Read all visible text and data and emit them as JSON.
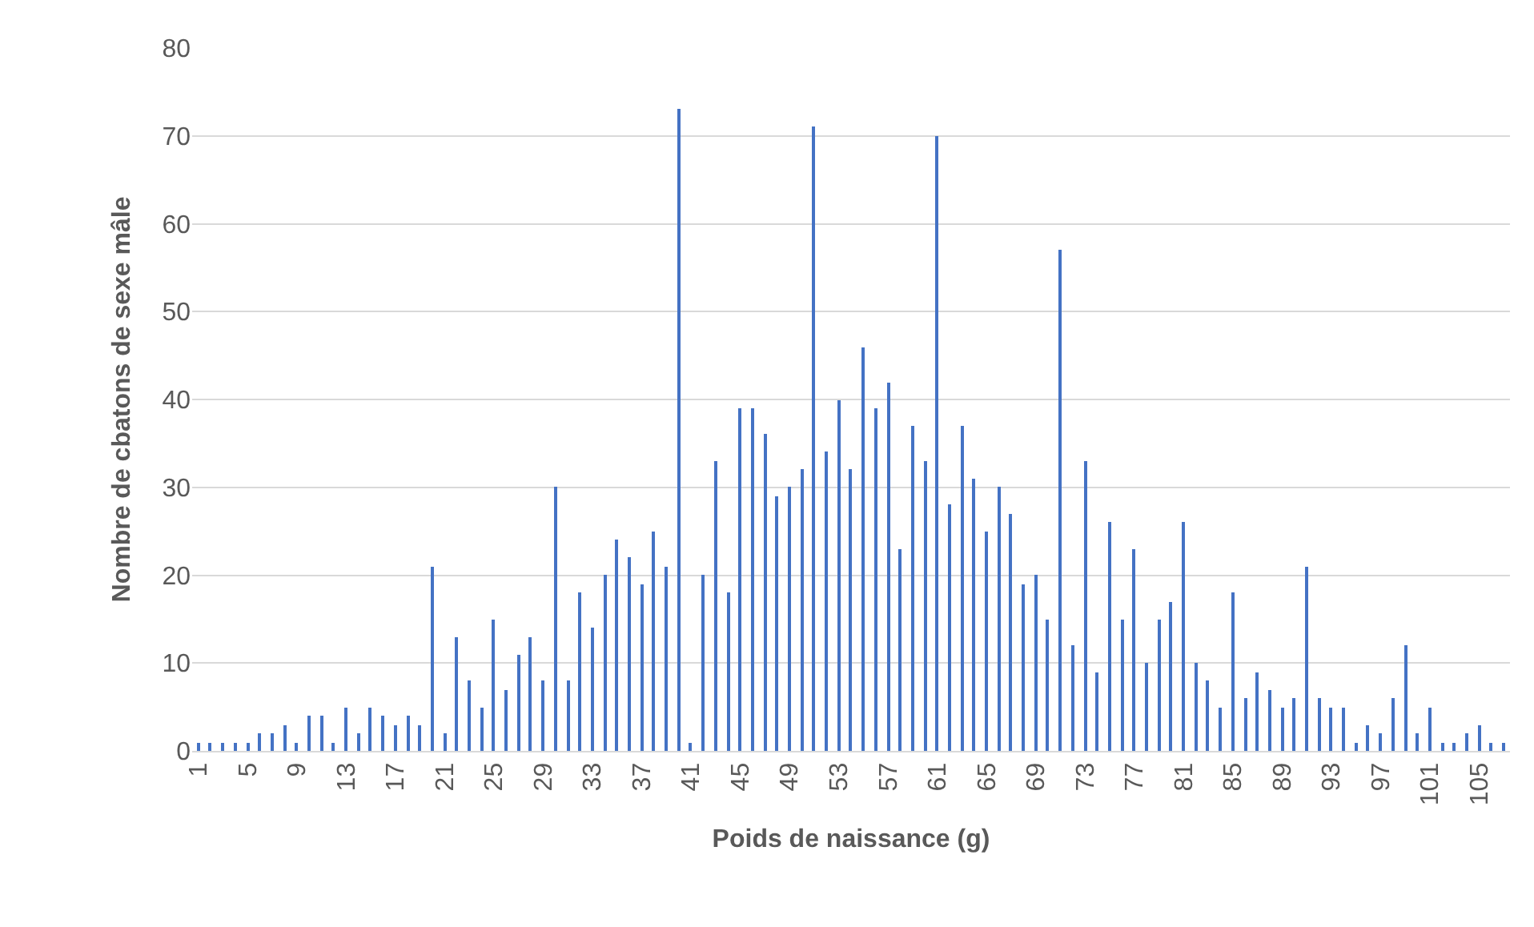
{
  "chart_data": {
    "type": "bar",
    "xlabel": "Poids de naissance (g)",
    "ylabel": "Nombre de cbatons de sexe mâle",
    "categories": [
      "1",
      null,
      null,
      null,
      "5",
      null,
      null,
      null,
      "9",
      null,
      null,
      null,
      "13",
      null,
      null,
      null,
      "17",
      null,
      null,
      null,
      "21",
      null,
      null,
      null,
      "25",
      null,
      null,
      null,
      "29",
      null,
      null,
      null,
      "33",
      null,
      null,
      null,
      "37",
      null,
      null,
      null,
      "41",
      null,
      null,
      null,
      "45",
      null,
      null,
      null,
      "49",
      null,
      null,
      null,
      "53",
      null,
      null,
      null,
      "57",
      null,
      null,
      null,
      "61",
      null,
      null,
      null,
      "65",
      null,
      null,
      null,
      "69",
      null,
      null,
      null,
      "73",
      null,
      null,
      null,
      "77",
      null,
      null,
      null,
      "81",
      null,
      null,
      null,
      "85",
      null,
      null,
      null,
      "89",
      null,
      null,
      null,
      "93",
      null,
      null,
      null,
      "97",
      null,
      null,
      null,
      "101",
      null,
      null,
      null,
      "105",
      null,
      null
    ],
    "values": [
      1,
      1,
      1,
      1,
      1,
      2,
      2,
      3,
      1,
      4,
      4,
      1,
      5,
      2,
      5,
      4,
      3,
      4,
      3,
      21,
      2,
      13,
      8,
      5,
      15,
      7,
      11,
      13,
      8,
      30,
      8,
      18,
      14,
      20,
      24,
      22,
      19,
      25,
      21,
      73,
      1,
      20,
      33,
      18,
      39,
      39,
      36,
      29,
      30,
      32,
      71,
      34,
      40,
      32,
      46,
      39,
      42,
      23,
      37,
      33,
      70,
      28,
      37,
      31,
      25,
      30,
      27,
      19,
      20,
      15,
      57,
      12,
      33,
      9,
      26,
      15,
      23,
      10,
      15,
      17,
      26,
      10,
      8,
      5,
      18,
      6,
      9,
      7,
      5,
      6,
      21,
      6,
      5,
      5,
      1,
      3,
      2,
      6,
      12,
      2,
      5,
      1,
      1,
      2,
      3,
      1,
      1
    ],
    "color": "#4472c4",
    "ylim": [
      0,
      80
    ],
    "yticks": [
      0,
      10,
      20,
      30,
      40,
      50,
      60,
      70,
      80
    ],
    "grid": "y"
  }
}
